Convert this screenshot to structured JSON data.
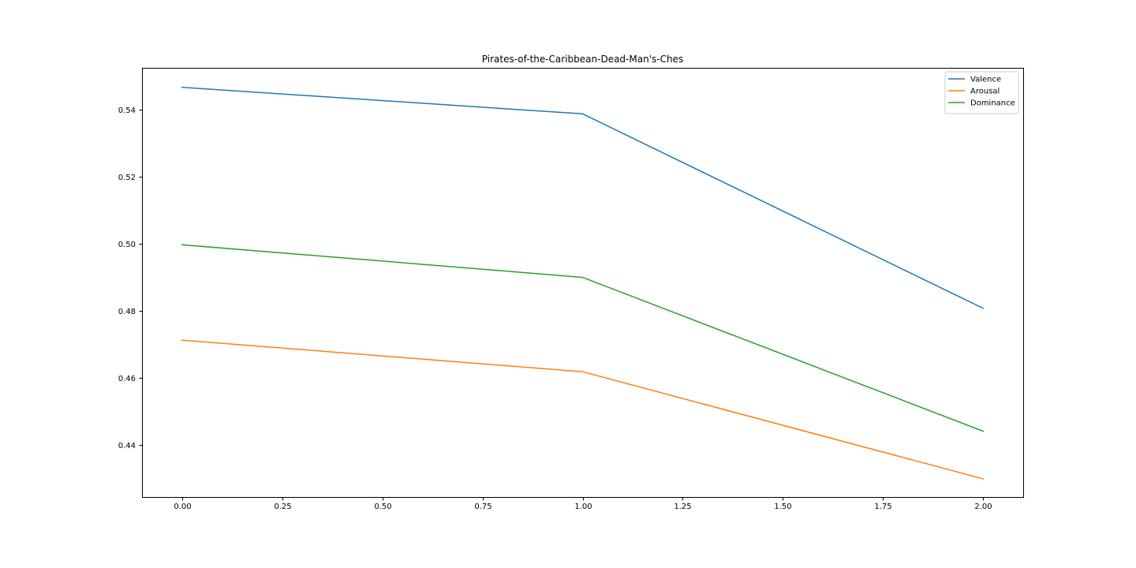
{
  "chart_data": {
    "type": "line",
    "title": "Pirates-of-the-Caribbean-Dead-Man's-Ches",
    "xlabel": "",
    "ylabel": "",
    "x": [
      0,
      1,
      2
    ],
    "xlim": [
      -0.1,
      2.1
    ],
    "ylim": [
      0.4246,
      0.5524
    ],
    "xticks": [
      0.0,
      0.25,
      0.5,
      0.75,
      1.0,
      1.25,
      1.5,
      1.75,
      2.0
    ],
    "xtick_labels": [
      "0.00",
      "0.25",
      "0.50",
      "0.75",
      "1.00",
      "1.25",
      "1.50",
      "1.75",
      "2.00"
    ],
    "yticks": [
      0.44,
      0.46,
      0.48,
      0.5,
      0.52,
      0.54
    ],
    "ytick_labels": [
      "0.44",
      "0.46",
      "0.48",
      "0.50",
      "0.52",
      "0.54"
    ],
    "grid": false,
    "legend_position": "top-right",
    "series": [
      {
        "name": "Valence",
        "color": "#1f77b4",
        "values": [
          0.5466,
          0.5387,
          0.4808
        ]
      },
      {
        "name": "Arousal",
        "color": "#ff7f0e",
        "values": [
          0.4713,
          0.4619,
          0.43
        ]
      },
      {
        "name": "Dominance",
        "color": "#2ca02c",
        "values": [
          0.4997,
          0.49,
          0.4442
        ]
      }
    ]
  }
}
